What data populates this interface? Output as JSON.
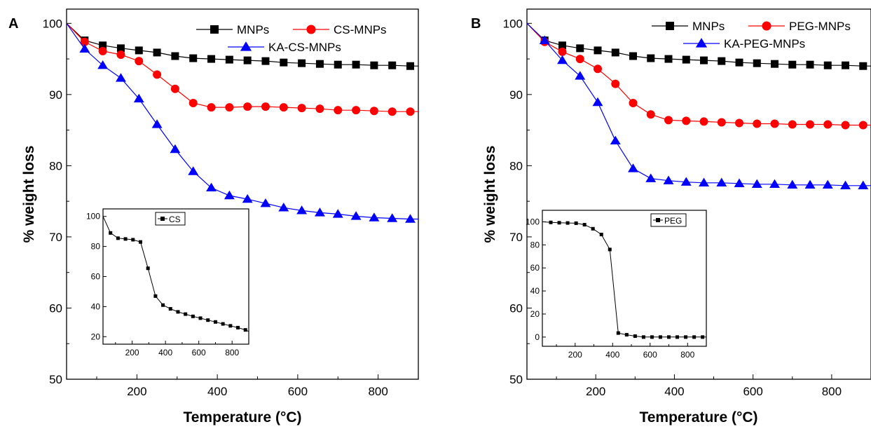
{
  "chart_data": [
    {
      "panel": "A",
      "type": "line",
      "xlabel": "Temperature (°C)",
      "ylabel": "% weight loss",
      "xlim": [
        25,
        900
      ],
      "ylim": [
        50,
        102
      ],
      "xticks": [
        200,
        400,
        600,
        800
      ],
      "yticks": [
        50,
        60,
        70,
        80,
        90,
        100
      ],
      "legend": "top-right",
      "grid": false,
      "series": [
        {
          "name": "MNPs",
          "color": "#000000",
          "marker": "square",
          "x": [
            25,
            70,
            115,
            160,
            205,
            250,
            295,
            340,
            385,
            430,
            475,
            520,
            565,
            610,
            655,
            700,
            745,
            790,
            835,
            880,
            900
          ],
          "y": [
            100,
            97.6,
            96.9,
            96.5,
            96.2,
            95.9,
            95.4,
            95.1,
            95.0,
            94.9,
            94.8,
            94.7,
            94.5,
            94.4,
            94.3,
            94.2,
            94.2,
            94.1,
            94.1,
            94.0,
            94.0
          ]
        },
        {
          "name": "CS-MNPs",
          "color": "#ff0000",
          "marker": "circle",
          "x": [
            25,
            70,
            115,
            160,
            205,
            250,
            295,
            340,
            385,
            430,
            475,
            520,
            565,
            610,
            655,
            700,
            745,
            790,
            835,
            880,
            900
          ],
          "y": [
            100,
            97.4,
            96.1,
            95.6,
            94.7,
            92.8,
            90.8,
            88.8,
            88.2,
            88.2,
            88.3,
            88.3,
            88.2,
            88.1,
            88.0,
            87.8,
            87.8,
            87.7,
            87.6,
            87.6,
            87.6
          ]
        },
        {
          "name": "KA-CS-MNPs",
          "color": "#0000ff",
          "marker": "triangle",
          "x": [
            25,
            70,
            115,
            160,
            205,
            250,
            295,
            340,
            385,
            430,
            475,
            520,
            565,
            610,
            655,
            700,
            745,
            790,
            835,
            880,
            900
          ],
          "y": [
            100,
            96.4,
            94.1,
            92.3,
            89.4,
            85.8,
            82.3,
            79.2,
            76.9,
            75.8,
            75.3,
            74.7,
            74.1,
            73.7,
            73.4,
            73.2,
            72.9,
            72.7,
            72.6,
            72.5,
            72.5
          ]
        }
      ],
      "inset": {
        "xlim": [
          25,
          900
        ],
        "ylim": [
          15,
          105
        ],
        "xticks": [
          200,
          400,
          600,
          800
        ],
        "yticks": [
          20,
          40,
          60,
          80,
          100
        ],
        "legend": "top-right",
        "series": [
          {
            "name": "CS",
            "color": "#000000",
            "marker": "square",
            "x": [
              25,
              70,
              115,
              160,
              205,
              250,
              295,
              340,
              385,
              430,
              475,
              520,
              565,
              610,
              655,
              700,
              745,
              790,
              835,
              880,
              900
            ],
            "y": [
              100,
              89,
              85.5,
              85,
              84.5,
              83,
              65.5,
              47,
              41,
              38.5,
              36.5,
              35,
              33.5,
              32.3,
              31,
              29.8,
              28.5,
              27.2,
              26,
              24.5,
              23.5
            ]
          }
        ]
      }
    },
    {
      "panel": "B",
      "type": "line",
      "xlabel": "Temperature (°C)",
      "ylabel": "% weight loss",
      "xlim": [
        25,
        900
      ],
      "ylim": [
        50,
        102
      ],
      "xticks": [
        200,
        400,
        600,
        800
      ],
      "yticks": [
        50,
        60,
        70,
        80,
        90,
        100
      ],
      "legend": "top-right",
      "grid": false,
      "series": [
        {
          "name": "MNPs",
          "color": "#000000",
          "marker": "square",
          "x": [
            25,
            70,
            115,
            160,
            205,
            250,
            295,
            340,
            385,
            430,
            475,
            520,
            565,
            610,
            655,
            700,
            745,
            790,
            835,
            880,
            900
          ],
          "y": [
            100,
            97.6,
            96.9,
            96.5,
            96.2,
            95.9,
            95.4,
            95.1,
            95.0,
            94.9,
            94.8,
            94.7,
            94.5,
            94.4,
            94.3,
            94.2,
            94.2,
            94.1,
            94.1,
            94.0,
            94.0
          ]
        },
        {
          "name": "PEG-MNPs",
          "color": "#ff0000",
          "marker": "circle",
          "x": [
            25,
            70,
            115,
            160,
            205,
            250,
            295,
            340,
            385,
            430,
            475,
            520,
            565,
            610,
            655,
            700,
            745,
            790,
            835,
            880,
            900
          ],
          "y": [
            100,
            97.4,
            96.0,
            95.0,
            93.6,
            91.5,
            88.8,
            87.2,
            86.4,
            86.3,
            86.2,
            86.1,
            86.0,
            85.9,
            85.9,
            85.8,
            85.8,
            85.8,
            85.7,
            85.7,
            85.7
          ]
        },
        {
          "name": "KA-PEG-MNPs",
          "color": "#0000ff",
          "marker": "triangle",
          "x": [
            25,
            70,
            115,
            160,
            205,
            250,
            295,
            340,
            385,
            430,
            475,
            520,
            565,
            610,
            655,
            700,
            745,
            790,
            835,
            880,
            900
          ],
          "y": [
            100,
            97.6,
            94.8,
            92.6,
            88.9,
            83.5,
            79.6,
            78.2,
            77.9,
            77.7,
            77.6,
            77.6,
            77.5,
            77.4,
            77.4,
            77.3,
            77.3,
            77.3,
            77.2,
            77.2,
            77.2
          ]
        }
      ],
      "inset": {
        "xlim": [
          25,
          900
        ],
        "ylim": [
          -8,
          110
        ],
        "xticks": [
          200,
          400,
          600,
          800
        ],
        "yticks": [
          0,
          20,
          40,
          60,
          80,
          100
        ],
        "legend": "top-right",
        "series": [
          {
            "name": "PEG",
            "color": "#000000",
            "marker": "square",
            "x": [
              25,
              70,
              115,
              160,
              205,
              250,
              295,
              340,
              385,
              430,
              475,
              520,
              565,
              610,
              655,
              700,
              745,
              790,
              835,
              880,
              900
            ],
            "y": [
              100,
              99.5,
              99.2,
              99,
              98.8,
              97.5,
              94,
              89,
              76,
              3.5,
              2,
              0.8,
              0,
              0,
              0,
              0,
              0,
              0,
              0,
              0,
              0
            ]
          }
        ]
      }
    }
  ]
}
